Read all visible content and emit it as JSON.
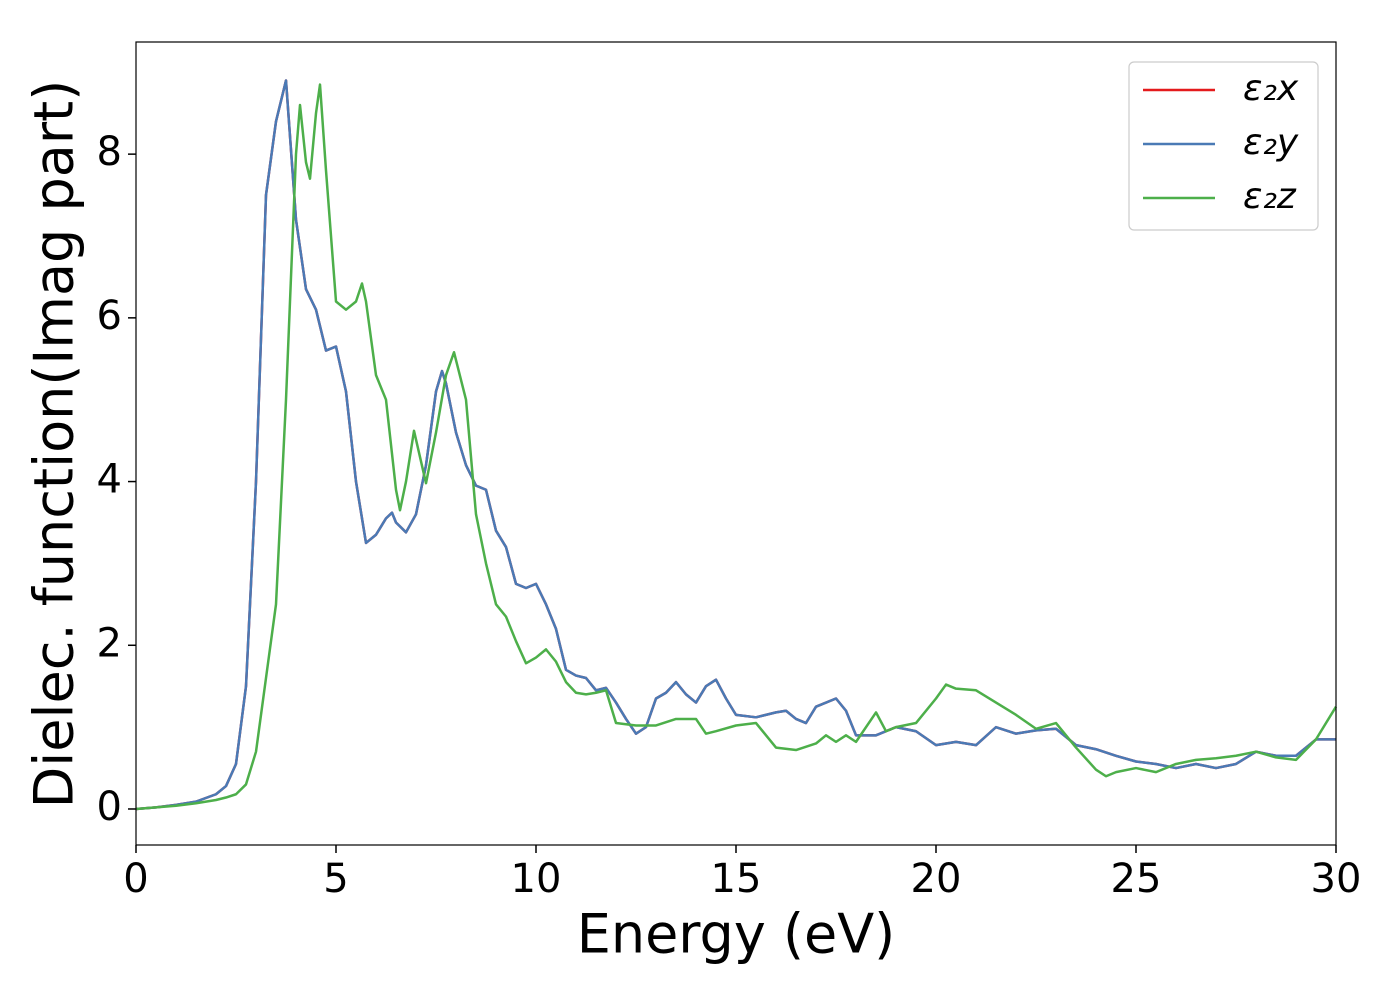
{
  "chart_data": {
    "type": "line",
    "xlabel": "Energy (eV)",
    "ylabel": "Dielec. function(Imag part)",
    "xlim": [
      0,
      30
    ],
    "ylim": [
      -0.44,
      9.37
    ],
    "xticks": [
      0,
      5,
      10,
      15,
      20,
      25,
      30
    ],
    "yticks": [
      0,
      2,
      4,
      6,
      8
    ],
    "grid": false,
    "legend": "upper right",
    "series": [
      {
        "name": "ε₂x",
        "color": "#e41a1c",
        "x": [
          0,
          0.5,
          1,
          1.5,
          2,
          2.25,
          2.5,
          2.75,
          3,
          3.25,
          3.5,
          3.75,
          4,
          4.25,
          4.5,
          4.75,
          5,
          5.25,
          5.5,
          5.75,
          6,
          6.25,
          6.4,
          6.5,
          6.75,
          7,
          7.25,
          7.5,
          7.65,
          7.75,
          8,
          8.25,
          8.5,
          8.75,
          9,
          9.25,
          9.5,
          9.75,
          10,
          10.25,
          10.5,
          10.75,
          11,
          11.25,
          11.5,
          11.75,
          12,
          12.25,
          12.5,
          12.75,
          13,
          13.25,
          13.5,
          13.75,
          14,
          14.25,
          14.5,
          14.75,
          15,
          15.5,
          16,
          16.25,
          16.5,
          16.75,
          17,
          17.5,
          17.75,
          18,
          18.5,
          19,
          19.5,
          20,
          20.5,
          21,
          21.5,
          22,
          22.5,
          23,
          23.5,
          24,
          24.5,
          25,
          25.5,
          26,
          26.5,
          27,
          27.5,
          28,
          28.5,
          29,
          29.5,
          30
        ],
        "values": [
          0,
          0.02,
          0.05,
          0.09,
          0.18,
          0.28,
          0.55,
          1.5,
          4.0,
          7.5,
          8.4,
          8.9,
          7.2,
          6.35,
          6.1,
          5.6,
          5.65,
          5.1,
          4.0,
          3.25,
          3.35,
          3.55,
          3.62,
          3.5,
          3.38,
          3.6,
          4.2,
          5.1,
          5.35,
          5.2,
          4.6,
          4.2,
          3.95,
          3.9,
          3.4,
          3.2,
          2.75,
          2.7,
          2.75,
          2.5,
          2.2,
          1.7,
          1.63,
          1.6,
          1.45,
          1.48,
          1.3,
          1.1,
          0.92,
          1.0,
          1.35,
          1.42,
          1.55,
          1.4,
          1.3,
          1.5,
          1.58,
          1.35,
          1.15,
          1.12,
          1.18,
          1.2,
          1.1,
          1.05,
          1.25,
          1.35,
          1.2,
          0.9,
          0.9,
          1.0,
          0.95,
          0.78,
          0.82,
          0.78,
          1.0,
          0.92,
          0.96,
          0.98,
          0.78,
          0.73,
          0.65,
          0.58,
          0.55,
          0.5,
          0.55,
          0.5,
          0.55,
          0.7,
          0.65,
          0.65,
          0.85,
          0.85
        ]
      },
      {
        "name": "ε₂y",
        "color": "#4a7ab5",
        "x": [
          0,
          0.5,
          1,
          1.5,
          2,
          2.25,
          2.5,
          2.75,
          3,
          3.25,
          3.5,
          3.75,
          4,
          4.25,
          4.5,
          4.75,
          5,
          5.25,
          5.5,
          5.75,
          6,
          6.25,
          6.4,
          6.5,
          6.75,
          7,
          7.25,
          7.5,
          7.65,
          7.75,
          8,
          8.25,
          8.5,
          8.75,
          9,
          9.25,
          9.5,
          9.75,
          10,
          10.25,
          10.5,
          10.75,
          11,
          11.25,
          11.5,
          11.75,
          12,
          12.25,
          12.5,
          12.75,
          13,
          13.25,
          13.5,
          13.75,
          14,
          14.25,
          14.5,
          14.75,
          15,
          15.5,
          16,
          16.25,
          16.5,
          16.75,
          17,
          17.5,
          17.75,
          18,
          18.5,
          19,
          19.5,
          20,
          20.5,
          21,
          21.5,
          22,
          22.5,
          23,
          23.5,
          24,
          24.5,
          25,
          25.5,
          26,
          26.5,
          27,
          27.5,
          28,
          28.5,
          29,
          29.5,
          30
        ],
        "values": [
          0,
          0.02,
          0.05,
          0.09,
          0.18,
          0.28,
          0.55,
          1.5,
          4.0,
          7.5,
          8.4,
          8.9,
          7.2,
          6.35,
          6.1,
          5.6,
          5.65,
          5.1,
          4.0,
          3.25,
          3.35,
          3.55,
          3.62,
          3.5,
          3.38,
          3.6,
          4.2,
          5.1,
          5.35,
          5.2,
          4.6,
          4.2,
          3.95,
          3.9,
          3.4,
          3.2,
          2.75,
          2.7,
          2.75,
          2.5,
          2.2,
          1.7,
          1.63,
          1.6,
          1.45,
          1.48,
          1.3,
          1.1,
          0.92,
          1.0,
          1.35,
          1.42,
          1.55,
          1.4,
          1.3,
          1.5,
          1.58,
          1.35,
          1.15,
          1.12,
          1.18,
          1.2,
          1.1,
          1.05,
          1.25,
          1.35,
          1.2,
          0.9,
          0.9,
          1.0,
          0.95,
          0.78,
          0.82,
          0.78,
          1.0,
          0.92,
          0.96,
          0.98,
          0.78,
          0.73,
          0.65,
          0.58,
          0.55,
          0.5,
          0.55,
          0.5,
          0.55,
          0.7,
          0.65,
          0.65,
          0.85,
          0.85
        ]
      },
      {
        "name": "ε₂z",
        "color": "#4daf4a",
        "x": [
          0,
          0.5,
          1,
          1.5,
          2,
          2.25,
          2.5,
          2.75,
          3,
          3.25,
          3.5,
          3.75,
          4,
          4.1,
          4.25,
          4.35,
          4.5,
          4.6,
          4.75,
          5,
          5.25,
          5.5,
          5.65,
          5.75,
          6,
          6.25,
          6.5,
          6.6,
          6.75,
          6.95,
          7.25,
          7.5,
          7.75,
          7.95,
          8.25,
          8.5,
          8.75,
          9,
          9.25,
          9.5,
          9.75,
          10,
          10.25,
          10.5,
          10.75,
          11,
          11.25,
          11.5,
          11.75,
          12,
          12.5,
          13,
          13.5,
          14,
          14.25,
          14.5,
          15,
          15.5,
          16,
          16.5,
          17,
          17.25,
          17.5,
          17.75,
          18,
          18.5,
          18.75,
          19,
          19.5,
          20,
          20.25,
          20.5,
          21,
          21.5,
          22,
          22.5,
          23,
          23.5,
          24,
          24.25,
          24.5,
          25,
          25.5,
          26,
          26.5,
          27,
          27.5,
          28,
          28.5,
          29,
          29.5,
          30
        ],
        "values": [
          0,
          0.02,
          0.04,
          0.07,
          0.11,
          0.14,
          0.18,
          0.3,
          0.7,
          1.6,
          2.5,
          5.0,
          8.0,
          8.6,
          7.9,
          7.7,
          8.5,
          8.85,
          7.8,
          6.2,
          6.1,
          6.2,
          6.42,
          6.2,
          5.3,
          5.0,
          3.9,
          3.65,
          4.0,
          4.62,
          3.98,
          4.6,
          5.3,
          5.58,
          5.0,
          3.6,
          3.0,
          2.5,
          2.35,
          2.05,
          1.78,
          1.85,
          1.95,
          1.8,
          1.55,
          1.42,
          1.4,
          1.42,
          1.45,
          1.05,
          1.02,
          1.02,
          1.1,
          1.1,
          0.92,
          0.95,
          1.02,
          1.05,
          0.75,
          0.72,
          0.8,
          0.9,
          0.82,
          0.9,
          0.82,
          1.18,
          0.95,
          1.0,
          1.05,
          1.35,
          1.52,
          1.47,
          1.45,
          1.3,
          1.15,
          0.98,
          1.05,
          0.75,
          0.48,
          0.4,
          0.45,
          0.5,
          0.45,
          0.55,
          0.6,
          0.62,
          0.65,
          0.7,
          0.63,
          0.6,
          0.85,
          1.25
        ]
      }
    ]
  }
}
